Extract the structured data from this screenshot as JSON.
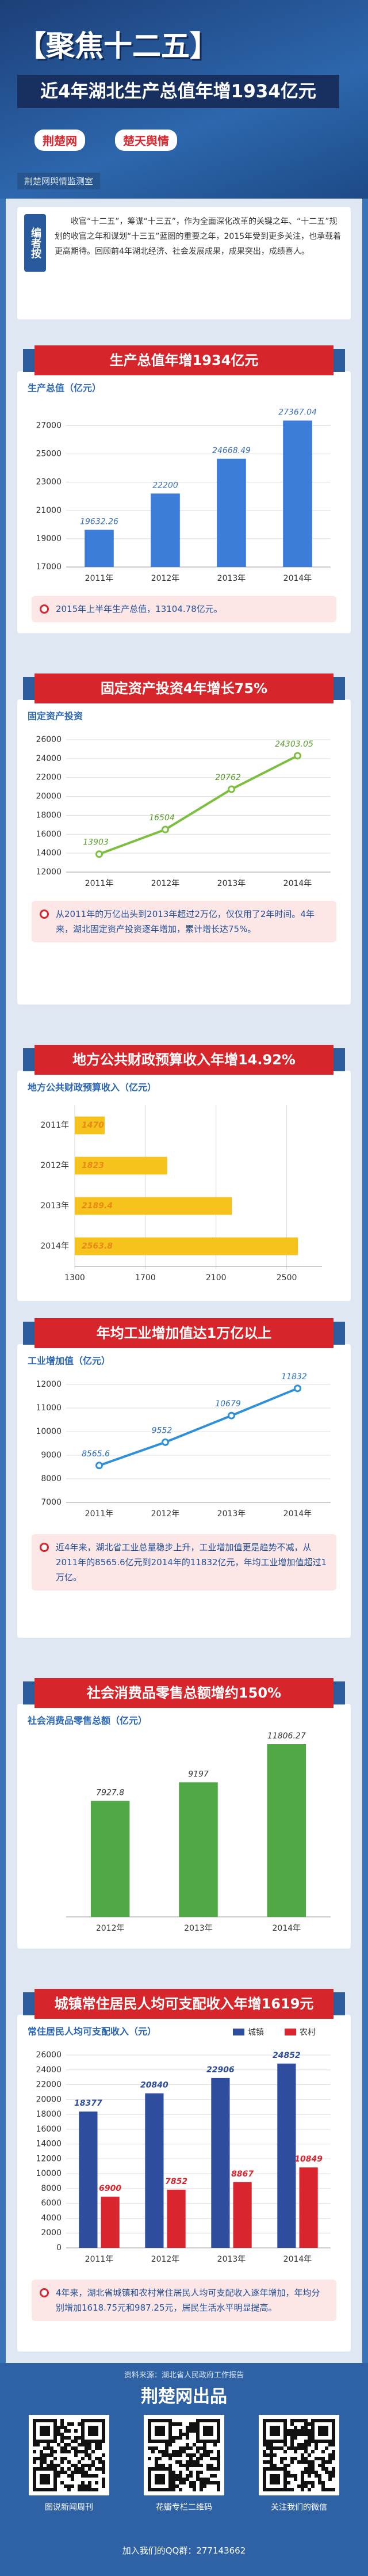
{
  "header": {
    "title": "【聚焦十二五】",
    "subtitle": "近4年湖北生产总值年增1934亿元",
    "logos": [
      "荆楚网",
      "楚天舆情"
    ],
    "tagline": "荆楚网舆情监测室"
  },
  "intro": {
    "badge": "编者按",
    "text": "收官“十二五”，筹谋“十三五”，作为全面深化改革的关键之年、“十二五”规划的收官之年和谋划“十三五”蓝图的重要之年，2015年受到更多关注，也承载着更高期待。回顾前4年湖北经济、社会发展成果，成果突出，成绩喜人。"
  },
  "chart_data": [
    {
      "type": "bar",
      "title": "生产总值年增1934亿元",
      "ylabel": "生产总值（亿元）",
      "categories": [
        "2011年",
        "2012年",
        "2013年",
        "2014年"
      ],
      "values": [
        19632.26,
        22200,
        24668.49,
        27367.04
      ],
      "color": "#3b7dd8",
      "label_color": "#3b6fb8",
      "ylim": [
        17000,
        28000
      ],
      "yticks": [
        17000,
        19000,
        21000,
        23000,
        25000,
        27000
      ],
      "grid": true,
      "note": "2015年上半年生产总值，13104.78亿元。"
    },
    {
      "type": "line",
      "title": "固定资产投资4年增长75%",
      "ylabel": "固定资产投资",
      "categories": [
        "2011年",
        "2012年",
        "2013年",
        "2014年"
      ],
      "values": [
        13903,
        16504,
        20762,
        24303.05
      ],
      "color": "#7cbf3f",
      "label_color": "#5a9e2a",
      "ylim": [
        12000,
        26000
      ],
      "yticks": [
        12000,
        14000,
        16000,
        18000,
        20000,
        22000,
        24000,
        26000
      ],
      "grid": true,
      "note": "从2011年的万亿出头到2013年超过2万亿，仅仅用了2年时间。4年来，湖北固定资产投资逐年增加，累计增长达75%。"
    },
    {
      "type": "barh",
      "title": "地方公共财政预算收入年增14.92%",
      "ylabel": "地方公共财政预算收入（亿元）",
      "categories": [
        "2011年",
        "2012年",
        "2013年",
        "2014年"
      ],
      "values": [
        1470,
        1823,
        2189.4,
        2563.8
      ],
      "color": "#f6c21c",
      "label_color": "#e8891a",
      "xlim": [
        1300,
        2700
      ],
      "xticks": [
        1300,
        1700,
        2100,
        2500
      ],
      "grid": true
    },
    {
      "type": "line",
      "title": "年均工业增加值达1万亿以上",
      "ylabel": "工业增加值（亿元）",
      "categories": [
        "2011年",
        "2012年",
        "2013年",
        "2014年"
      ],
      "values": [
        8565.6,
        9552,
        10679,
        11832
      ],
      "color": "#2f8fd8",
      "label_color": "#2c6fc0",
      "ylim": [
        7000,
        12000
      ],
      "yticks": [
        7000,
        8000,
        9000,
        10000,
        11000,
        12000
      ],
      "grid": true,
      "note": "近4年来，湖北省工业总量稳步上升，工业增加值更是趋势不减，从2011年的8565.6亿元到2014年的11832亿元，年均工业增加值超过1万亿。"
    },
    {
      "type": "bar",
      "title": "社会消费品零售总额增约150%",
      "ylabel": "社会消费品零售总额（亿元）",
      "categories": [
        "2012年",
        "2013年",
        "2014年"
      ],
      "values": [
        7927.8,
        9197,
        11806.27
      ],
      "color": "#4fa843",
      "label_color": "#333333",
      "grid": false
    },
    {
      "type": "bar",
      "title": "城镇常住居民人均可支配收入年增1619元",
      "ylabel": "常住居民人均可支配收入（元）",
      "categories": [
        "2011年",
        "2012年",
        "2013年",
        "2014年"
      ],
      "series": [
        {
          "name": "城镇",
          "color": "#2e4d9e",
          "values": [
            18377,
            20840,
            22906,
            24852
          ]
        },
        {
          "name": "农村",
          "color": "#d9262e",
          "values": [
            6900,
            7852,
            8867,
            10849
          ]
        }
      ],
      "ylim": [
        0,
        26000
      ],
      "yticks": [
        0,
        2000,
        4000,
        6000,
        8000,
        10000,
        12000,
        14000,
        16000,
        18000,
        20000,
        22000,
        24000,
        26000
      ],
      "grid": true,
      "legend": "top-right",
      "note": "4年来，湖北省城镇和农村常住居民人均可支配收入逐年增加，年均分别增加1618.75元和987.25元，居民生活水平明显提高。"
    }
  ],
  "footer": {
    "source": "资料来源：湖北省人民政府工作报告",
    "producer": "荆楚网出品",
    "qr_captions": [
      "图说新闻周刊",
      "花瓣专栏二维码",
      "关注我们的微信"
    ],
    "qq": "加入我们的QQ群：277143662"
  }
}
